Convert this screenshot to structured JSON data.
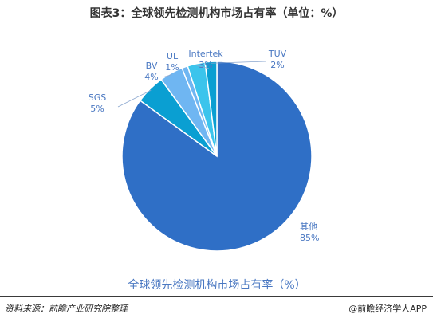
{
  "title": "图表3：全球领先检测机构市场占有率（单位：%）",
  "source": "资料来源：前瞻产业研究院整理",
  "credit": "@前瞻经济学人APP",
  "colors": {
    "dark_blue": "#2f6fc6",
    "teal": "#0a9fd2",
    "light_blue": "#6fb6f2",
    "cyan": "#3bc4ec",
    "label_blue": "#4a78c2"
  },
  "chart_data": {
    "type": "pie",
    "title": "全球领先检测机构市场占有率（%）",
    "labels": [
      "其他",
      "SGS",
      "BV",
      "UL",
      "Intertek",
      "TÜV"
    ],
    "values": [
      85,
      5,
      4,
      1,
      3,
      2
    ],
    "value_labels": [
      "85%",
      "5%",
      "4%",
      "1%",
      "3%",
      "2%"
    ]
  }
}
